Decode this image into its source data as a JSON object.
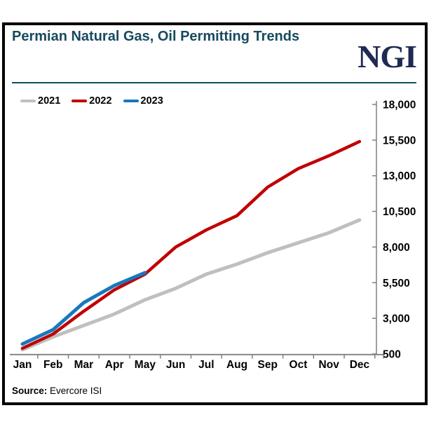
{
  "header": {
    "title": "Permian Natural Gas, Oil Permitting Trends",
    "logo_text": "NGI"
  },
  "source": {
    "label": "Source:",
    "text": "Evercore ISI"
  },
  "colors": {
    "title": "#174A5F",
    "logo": "#1F2A52",
    "rule": "#114E5F",
    "axis": "#808080",
    "tick_text": "#000000",
    "frame_border": "#000000",
    "series_2021": "#BFBFBF",
    "series_2022": "#C00000",
    "series_2023": "#1778BE"
  },
  "chart_data": {
    "type": "line",
    "title": "Permian Natural Gas, Oil Permitting Trends",
    "categories": [
      "Jan",
      "Feb",
      "Mar",
      "Apr",
      "May",
      "Jun",
      "Jul",
      "Aug",
      "Sep",
      "Oct",
      "Nov",
      "Dec"
    ],
    "series": [
      {
        "name": "2021",
        "color": "#BFBFBF",
        "values": [
          800,
          1700,
          2500,
          3300,
          4300,
          5100,
          6100,
          6800,
          7600,
          8300,
          9000,
          9900
        ]
      },
      {
        "name": "2022",
        "color": "#C00000",
        "values": [
          900,
          1900,
          3500,
          5000,
          6100,
          8000,
          9200,
          10200,
          12200,
          13500,
          14400,
          15400
        ]
      },
      {
        "name": "2023",
        "color": "#1778BE",
        "values": [
          1200,
          2200,
          4100,
          5300,
          6200
        ]
      }
    ],
    "ylim": [
      500,
      18000
    ],
    "yticks": [
      500,
      3000,
      5500,
      8000,
      10500,
      13000,
      15500,
      18000
    ],
    "ytick_labels": [
      "500",
      "3,000",
      "5,500",
      "8,000",
      "10,500",
      "13,000",
      "15,500",
      "18,000"
    ],
    "y_axis_side": "right",
    "legend_position": "top-left",
    "grid": false
  }
}
